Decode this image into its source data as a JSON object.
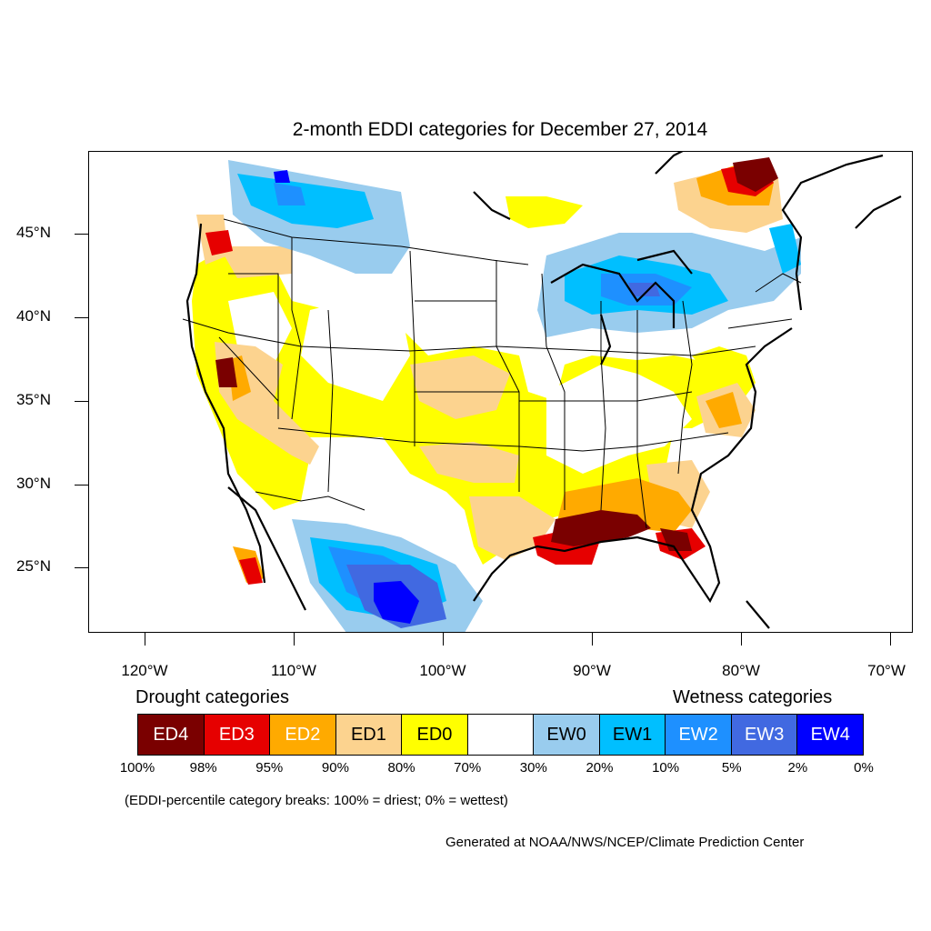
{
  "title": "2-month EDDI categories for December 27, 2014",
  "map": {
    "lat_labels": [
      "45°N",
      "40°N",
      "35°N",
      "30°N",
      "25°N"
    ],
    "lon_labels": [
      "120°W",
      "110°W",
      "100°W",
      "90°W",
      "80°W",
      "70°W"
    ]
  },
  "legend": {
    "drought_heading": "Drought categories",
    "wetness_heading": "Wetness categories",
    "categories": [
      {
        "label": "ED4",
        "color": "#7a0000",
        "text_color": "#ffffff"
      },
      {
        "label": "ED3",
        "color": "#e60000",
        "text_color": "#ffffff"
      },
      {
        "label": "ED2",
        "color": "#ffaa00",
        "text_color": "#ffffff"
      },
      {
        "label": "ED1",
        "color": "#fcd38f",
        "text_color": "#000000"
      },
      {
        "label": "ED0",
        "color": "#ffff00",
        "text_color": "#000000"
      },
      {
        "label": "",
        "color": "#ffffff",
        "text_color": "#000000"
      },
      {
        "label": "EW0",
        "color": "#99ccee",
        "text_color": "#000000"
      },
      {
        "label": "EW1",
        "color": "#00bfff",
        "text_color": "#000000"
      },
      {
        "label": "EW2",
        "color": "#1e90ff",
        "text_color": "#ffffff"
      },
      {
        "label": "EW3",
        "color": "#4169e1",
        "text_color": "#ffffff"
      },
      {
        "label": "EW4",
        "color": "#0000ff",
        "text_color": "#ffffff"
      }
    ],
    "percent_breaks": [
      "100%",
      "98%",
      "95%",
      "90%",
      "80%",
      "70%",
      "30%",
      "20%",
      "10%",
      "5%",
      "2%",
      "0%"
    ],
    "note": "(EDDI-percentile category breaks: 100% = driest; 0% = wettest)"
  },
  "credit": "Generated at NOAA/NWS/NCEP/Climate Prediction Center"
}
